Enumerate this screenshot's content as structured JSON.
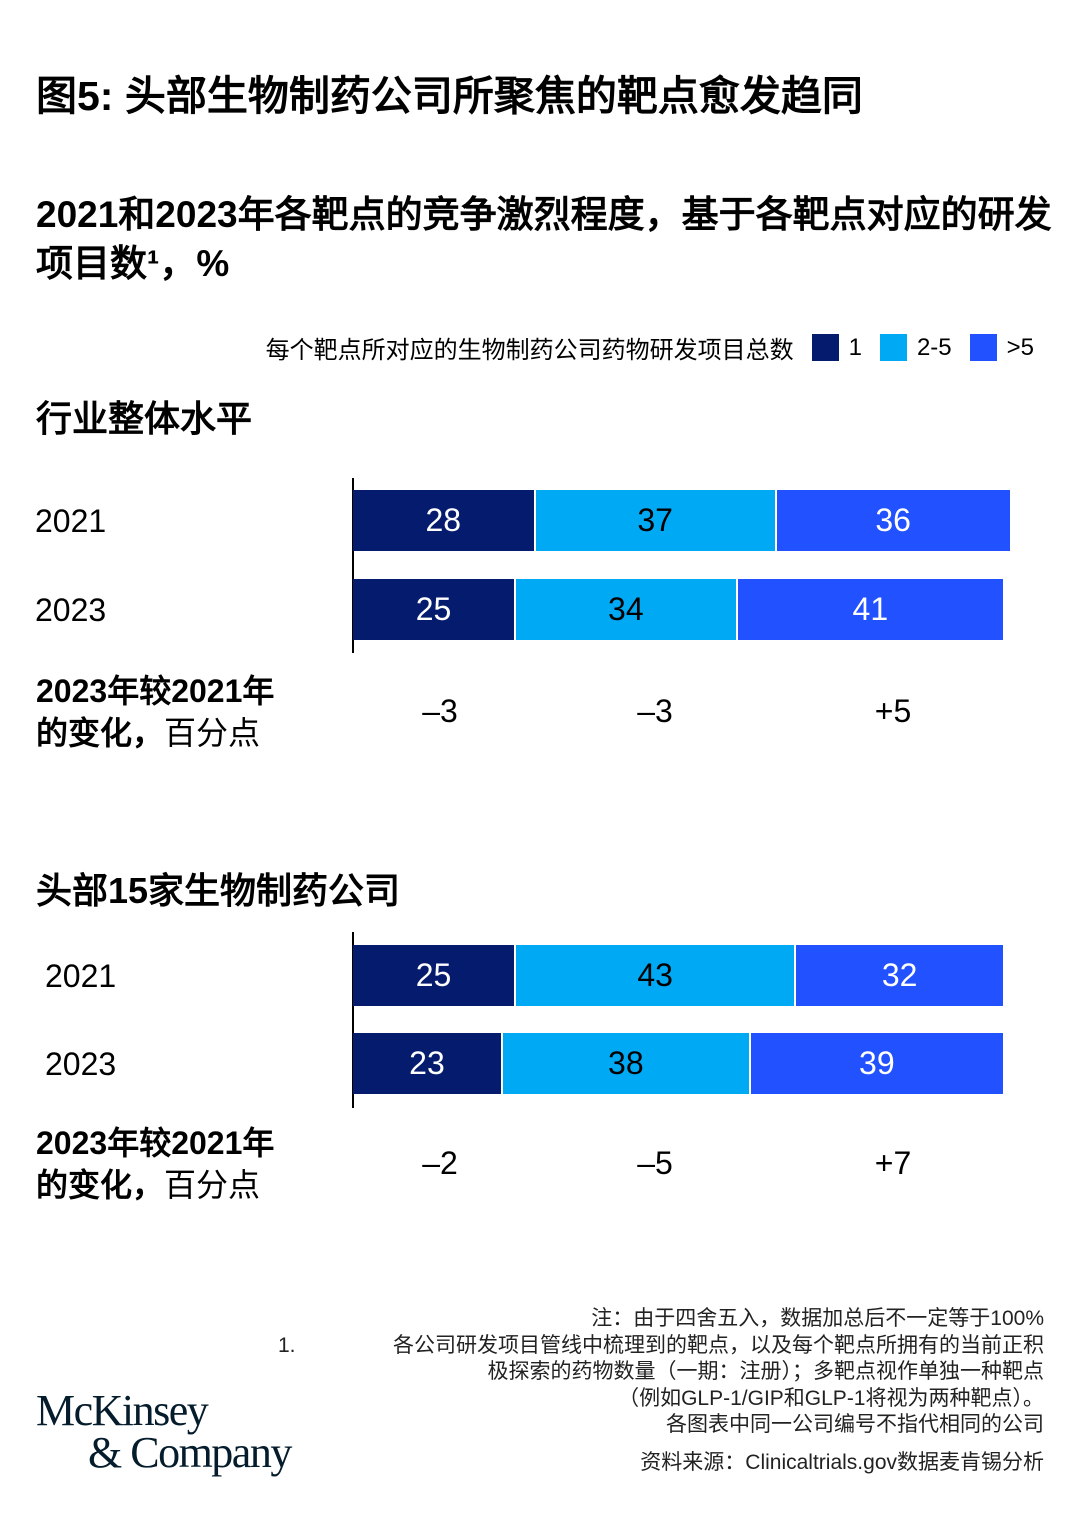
{
  "title": "图5: 头部生物制药公司所聚焦的靶点愈发趋同",
  "subtitle": "2021和2023年各靶点的竞争激烈程度，基于各靶点对应的研发项目数¹，%",
  "legend": {
    "label": "每个靶点所对应的生物制药公司药物研发项目总数",
    "items": [
      {
        "label": "1",
        "color": "#051c6e"
      },
      {
        "label": "2-5",
        "color": "#00a9f4"
      },
      {
        "label": ">5",
        "color": "#2251ff"
      }
    ]
  },
  "chart_data": [
    {
      "type": "bar",
      "orientation": "horizontal-stacked",
      "title": "行业整体水平",
      "categories": [
        "2021",
        "2023"
      ],
      "series": [
        {
          "name": "1",
          "values": [
            28,
            25
          ]
        },
        {
          "name": "2-5",
          "values": [
            37,
            34
          ]
        },
        {
          "name": ">5",
          "values": [
            36,
            41
          ]
        }
      ],
      "change_label": [
        "2023年较2021年",
        "的变化，",
        "百分点"
      ],
      "changes": [
        "–3",
        "–3",
        "+5"
      ]
    },
    {
      "type": "bar",
      "orientation": "horizontal-stacked",
      "title": "头部15家生物制药公司",
      "categories": [
        "2021",
        "2023"
      ],
      "series": [
        {
          "name": "1",
          "values": [
            25,
            23
          ]
        },
        {
          "name": "2-5",
          "values": [
            43,
            38
          ]
        },
        {
          "name": ">5",
          "values": [
            32,
            39
          ]
        }
      ],
      "change_label": [
        "2023年较2021年",
        "的变化，",
        "百分点"
      ],
      "changes": [
        "–2",
        "–5",
        "+7"
      ]
    }
  ],
  "notes": {
    "note": "注：由于四舍五入，数据加总后不一定等于100%",
    "footnote_number": "1.",
    "footnote_lines": [
      "各公司研发项目管线中梳理到的靶点，以及每个靶点所拥有的当前正积",
      "极探索的药物数量（一期：注册）；多靶点视作单独一种靶点",
      "（例如GLP-1/GIP和GLP-1将视为两种靶点）。",
      "各图表中同一公司编号不指代相同的公司"
    ],
    "source": "资料来源：Clinicaltrials.gov数据麦肯锡分析"
  },
  "logo": {
    "line1": "McKinsey",
    "line2": "& Company"
  }
}
